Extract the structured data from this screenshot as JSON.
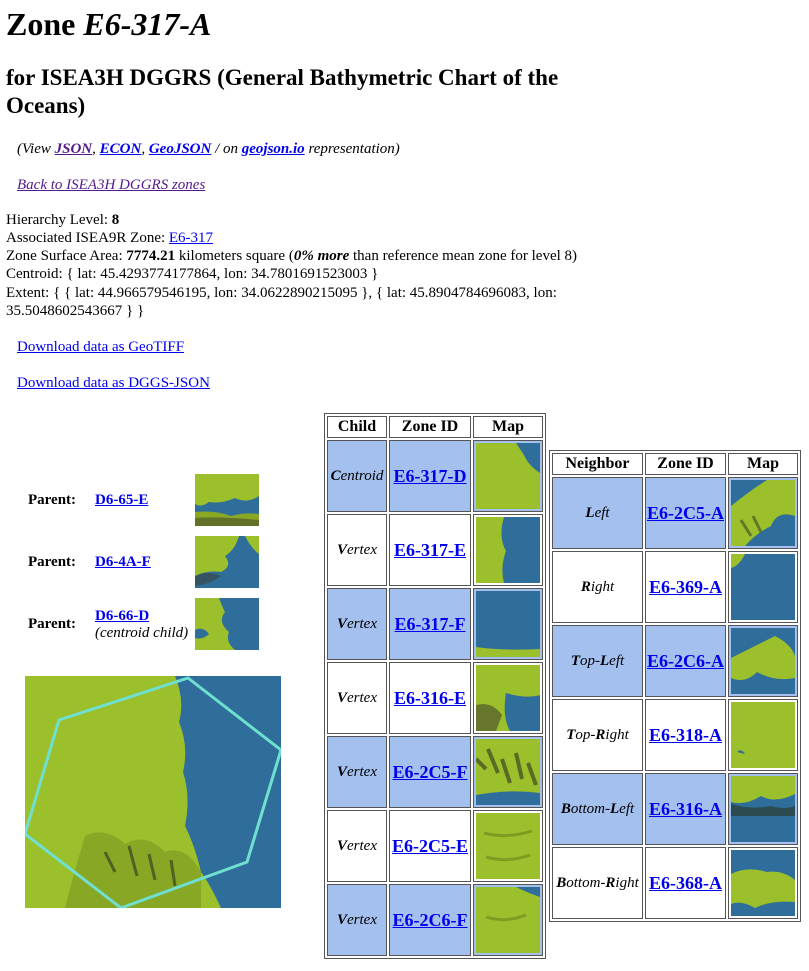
{
  "title_prefix": "Zone ",
  "title_zone": "E6-317-A",
  "subtitle": "for ISEA3H DGGRS (General Bathymetric Chart of the Oceans)",
  "views": {
    "open": "(View ",
    "json": "JSON",
    "econ": "ECON",
    "geojson": "GeoJSON",
    "on": " / on ",
    "geojsonio": "geojson.io",
    "close": " representation)"
  },
  "back_link": "Back to ISEA3H DGGRS zones",
  "info": {
    "hierarchy_label": "Hierarchy Level: ",
    "hierarchy_value": "8",
    "assoc_label": "Associated ISEA9R Zone: ",
    "assoc_value": "E6-317",
    "area_label": "Zone Surface Area: ",
    "area_value": "7774.21",
    "area_unit": " kilometers square (",
    "area_more": "0% more",
    "area_rest": " than reference mean zone for level 8)",
    "centroid": "Centroid: { lat: 45.4293774177864, lon: 34.7801691523003 }",
    "extent": "Extent: { { lat: 44.966579546195, lon: 34.0622890215095 }, { lat: 45.8904784696083, lon: 35.5048602543667 } }"
  },
  "download_geotiff": "Download data as GeoTIFF",
  "download_dggsjson": "Download data as DGGS-JSON",
  "parents": [
    {
      "label": "Parent:",
      "zone": "D6-65-E",
      "note": ""
    },
    {
      "label": "Parent:",
      "zone": "D6-4A-F",
      "note": ""
    },
    {
      "label": "Parent:",
      "zone": "D6-66-D",
      "note": "(centroid child)"
    }
  ],
  "children_headers": [
    "Child",
    "Zone ID",
    "Map"
  ],
  "children": [
    {
      "kind_first": "C",
      "kind_rest": "entroid",
      "zone": "E6-317-D",
      "highlight": true
    },
    {
      "kind_first": "V",
      "kind_rest": "ertex",
      "zone": "E6-317-E",
      "highlight": false
    },
    {
      "kind_first": "V",
      "kind_rest": "ertex",
      "zone": "E6-317-F",
      "highlight": true
    },
    {
      "kind_first": "V",
      "kind_rest": "ertex",
      "zone": "E6-316-E",
      "highlight": false
    },
    {
      "kind_first": "V",
      "kind_rest": "ertex",
      "zone": "E6-2C5-F",
      "highlight": true
    },
    {
      "kind_first": "V",
      "kind_rest": "ertex",
      "zone": "E6-2C5-E",
      "highlight": false
    },
    {
      "kind_first": "V",
      "kind_rest": "ertex",
      "zone": "E6-2C6-F",
      "highlight": true
    }
  ],
  "neighbor_headers": [
    "Neighbor",
    "Zone ID",
    "Map"
  ],
  "neighbors": [
    {
      "parts": [
        [
          "L",
          true
        ],
        [
          "eft",
          false
        ]
      ],
      "zone": "E6-2C5-A",
      "highlight": true
    },
    {
      "parts": [
        [
          "R",
          true
        ],
        [
          "ight",
          false
        ]
      ],
      "zone": "E6-369-A",
      "highlight": false
    },
    {
      "parts": [
        [
          "T",
          true
        ],
        [
          "op-",
          false
        ],
        [
          "L",
          true
        ],
        [
          "eft",
          false
        ]
      ],
      "zone": "E6-2C6-A",
      "highlight": true
    },
    {
      "parts": [
        [
          "T",
          true
        ],
        [
          "op-",
          false
        ],
        [
          "R",
          true
        ],
        [
          "ight",
          false
        ]
      ],
      "zone": "E6-318-A",
      "highlight": false
    },
    {
      "parts": [
        [
          "B",
          true
        ],
        [
          "ottom-",
          false
        ],
        [
          "L",
          true
        ],
        [
          "eft",
          false
        ]
      ],
      "zone": "E6-316-A",
      "highlight": true
    },
    {
      "parts": [
        [
          "B",
          true
        ],
        [
          "ottom-",
          false
        ],
        [
          "R",
          true
        ],
        [
          "ight",
          false
        ]
      ],
      "zone": "E6-368-A",
      "highlight": false
    }
  ],
  "colors": {
    "land": "#9cbf2c",
    "sea": "#2f6e9a",
    "highlight": "#a4c0ee",
    "hexagon": "#6fe0d0"
  }
}
